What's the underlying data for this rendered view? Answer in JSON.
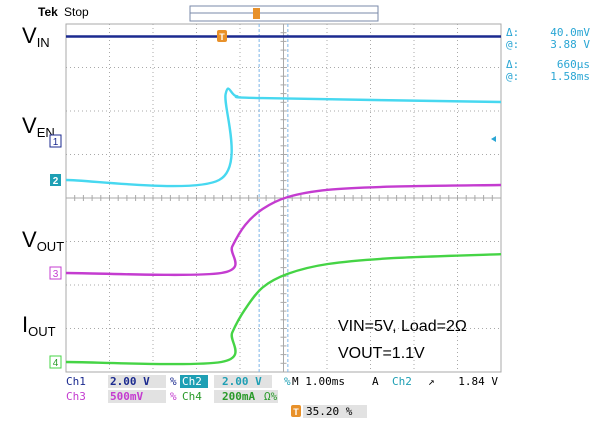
{
  "header": {
    "brand": "Tek",
    "state": "Stop"
  },
  "cursor_readout": {
    "dv_symbol": "Δ:",
    "dv_value": "40.0mV",
    "at_symbol": "@:",
    "at_value": "3.88 V",
    "dt_symbol": "Δ:",
    "dt_value": "660µs",
    "at2_symbol": "@:",
    "at2_value": "1.58ms"
  },
  "trigger_marker": "T",
  "channel_markers": [
    "1",
    "2",
    "3",
    "4"
  ],
  "signal_labels": {
    "vin": {
      "main": "V",
      "sub": "IN"
    },
    "ven": {
      "main": "V",
      "sub": "EN"
    },
    "vout": {
      "main": "V",
      "sub": "OUT"
    },
    "iout": {
      "main": "I",
      "sub": "OUT"
    }
  },
  "annotation": {
    "line1": "VIN=5V, Load=2Ω",
    "line2": "VOUT=1.1V"
  },
  "settings": {
    "row1": [
      {
        "ch": "Ch1",
        "scale": "2.00 V",
        "coupling": "%"
      },
      {
        "ch": "Ch2",
        "scale": "2.00 V",
        "coupling": "%"
      }
    ],
    "row2": [
      {
        "ch": "Ch3",
        "scale": "500mV",
        "coupling": "%"
      },
      {
        "ch": "Ch4",
        "scale": "200mA",
        "coupling": "Ω%"
      }
    ],
    "timebase": "M 1.00ms",
    "trigger_mode": "A",
    "trigger_src": "Ch2",
    "trigger_slope": "↗",
    "trigger_level": "1.84 V",
    "position_marker": "T",
    "position": "35.20 %"
  },
  "colors": {
    "ch1": "#1b2a8f",
    "ch2": "#47d8f0",
    "ch3": "#c43cd0",
    "ch4": "#45d445",
    "grid": "#a9a9a9",
    "cursor": "#7fb6e8",
    "trigger": "#e8912a"
  },
  "chart_data": {
    "type": "line",
    "x_unit": "ms",
    "x_range": [
      -3.52,
      6.48
    ],
    "series": [
      {
        "channel": "Ch1",
        "x": [
          -3.52,
          6.48
        ],
        "y": [
          5.0,
          5.0
        ]
      },
      {
        "channel": "Ch2",
        "x": [
          -3.52,
          0.0,
          0.15,
          0.4,
          1.0,
          6.48
        ],
        "y": [
          0.0,
          0.0,
          4.4,
          4.3,
          4.2,
          4.0
        ]
      },
      {
        "channel": "Ch3",
        "x": [
          -3.52,
          0.05,
          0.3,
          0.6,
          1.0,
          1.58,
          2.5,
          4.0,
          6.48
        ],
        "y": [
          0.0,
          0.0,
          0.33,
          0.6,
          0.8,
          0.95,
          1.04,
          1.08,
          1.1
        ]
      },
      {
        "channel": "Ch4",
        "x": [
          -3.52,
          0.05,
          0.3,
          0.6,
          1.0,
          1.58,
          2.5,
          4.0,
          6.48
        ],
        "y": [
          0.0,
          0.0,
          0.15,
          0.27,
          0.38,
          0.45,
          0.5,
          0.53,
          0.55
        ]
      }
    ]
  }
}
